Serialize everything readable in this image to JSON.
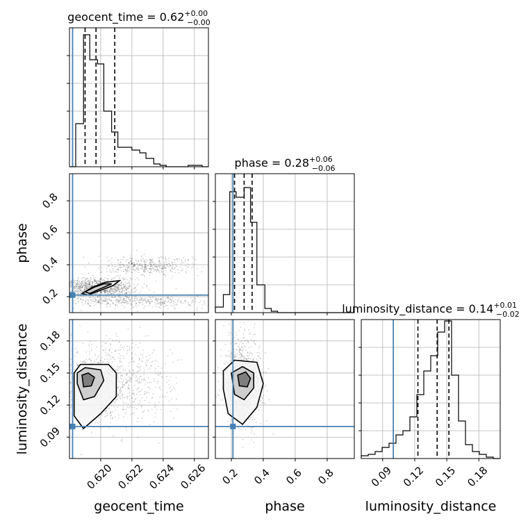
{
  "chart_data": {
    "type": "corner",
    "parameters": [
      "geocent_time",
      "phase",
      "luminosity_distance"
    ],
    "truths": {
      "geocent_time": 0.6182,
      "phase": 0.21,
      "luminosity_distance": 0.1
    },
    "truth_color": "#4682b4",
    "grid": true,
    "titles": [
      {
        "param": "geocent_time",
        "text": "geocent_time = 0.62",
        "sup": "+0.00",
        "sub": "−0.00"
      },
      {
        "param": "phase",
        "text": "phase = 0.28",
        "sup": "+0.06",
        "sub": "−0.06"
      },
      {
        "param": "luminosity_distance",
        "text": "luminosity_distance = 0.14",
        "sup": "+0.01",
        "sub": "−0.02"
      }
    ],
    "axis_labels": {
      "x": [
        "geocent_time",
        "phase",
        "luminosity_distance"
      ],
      "y": [
        "phase",
        "luminosity_distance"
      ]
    },
    "ranges": {
      "geocent_time": [
        0.618,
        0.6269
      ],
      "phase": [
        0.1,
        0.97
      ],
      "luminosity_distance": [
        0.07,
        0.2
      ]
    },
    "ticks": {
      "geocent_time": [
        0.62,
        0.622,
        0.624,
        0.626
      ],
      "phase": [
        0.2,
        0.4,
        0.6,
        0.8
      ],
      "luminosity_distance": [
        0.09,
        0.12,
        0.15,
        0.18
      ]
    },
    "tick_labels": {
      "geocent_time": [
        "0.620",
        "0.622",
        "0.624",
        "0.626"
      ],
      "phase": [
        "0.2",
        "0.4",
        "0.6",
        "0.8"
      ],
      "luminosity_distance": [
        "0.09",
        "0.12",
        "0.15",
        "0.18"
      ]
    },
    "quantiles": {
      "geocent_time": [
        0.619,
        0.6197,
        0.6209
      ],
      "phase": [
        0.22,
        0.28,
        0.33
      ],
      "luminosity_distance": [
        0.123,
        0.141,
        0.152
      ]
    },
    "histograms": {
      "geocent_time": {
        "bins": [
          0.618,
          0.6184,
          0.6189,
          0.6193,
          0.6198,
          0.6202,
          0.6207,
          0.6211,
          0.6216,
          0.622,
          0.6225,
          0.6229,
          0.6234,
          0.6238,
          0.6242,
          0.6247,
          0.6251,
          0.6256,
          0.626,
          0.6265,
          0.6269
        ],
        "counts": [
          0.0,
          0.31,
          0.95,
          0.77,
          0.74,
          0.4,
          0.25,
          0.14,
          0.14,
          0.12,
          0.1,
          0.06,
          0.02,
          0.01,
          0.0,
          0.0,
          0.0,
          0.01,
          0.01,
          0.0
        ]
      },
      "phase": {
        "bins": [
          0.1,
          0.15,
          0.19,
          0.23,
          0.28,
          0.32,
          0.36,
          0.41,
          0.45,
          0.49,
          0.54,
          0.58,
          0.62,
          0.67,
          0.71,
          0.75,
          0.8,
          0.84,
          0.88,
          0.93,
          0.97
        ],
        "counts": [
          0.04,
          0.13,
          0.87,
          0.83,
          0.9,
          0.65,
          0.2,
          0.03,
          0.01,
          0.0,
          0.0,
          0.0,
          0.0,
          0.0,
          0.0,
          0.0,
          0.0,
          0.0,
          0.0,
          0.0
        ]
      },
      "luminosity_distance": {
        "bins": [
          0.07,
          0.0765,
          0.083,
          0.0895,
          0.096,
          0.1025,
          0.109,
          0.1155,
          0.122,
          0.1285,
          0.135,
          0.1415,
          0.148,
          0.1545,
          0.161,
          0.1675,
          0.174,
          0.1805,
          0.187,
          0.1935,
          0.2
        ],
        "counts": [
          0.02,
          0.03,
          0.05,
          0.08,
          0.11,
          0.17,
          0.2,
          0.3,
          0.46,
          0.63,
          0.74,
          0.91,
          0.99,
          0.6,
          0.27,
          0.1,
          0.05,
          0.03,
          0.01,
          0.0
        ]
      }
    },
    "density_clouds": [
      {
        "panel": "phase_vs_geocent_time",
        "center": [
          0.6198,
          0.26
        ],
        "spread": [
          0.0012,
          0.03
        ]
      },
      {
        "panel": "phase_vs_geocent_time",
        "center": [
          0.623,
          0.39
        ],
        "spread": [
          0.0015,
          0.03
        ]
      },
      {
        "panel": "phase_vs_geocent_time",
        "center": [
          0.622,
          0.17
        ],
        "spread": [
          0.0025,
          0.02
        ]
      },
      {
        "panel": "luminosity_distance_vs_geocent_time",
        "center": [
          0.6205,
          0.14
        ],
        "spread": [
          0.002,
          0.02
        ]
      },
      {
        "panel": "luminosity_distance_vs_phase",
        "center": [
          0.27,
          0.142
        ],
        "spread": [
          0.06,
          0.02
        ]
      }
    ],
    "contours": [
      {
        "panel": "phase_vs_geocent_time",
        "paths": [
          [
            [
              0.6188,
              0.22
            ],
            [
              0.6195,
              0.26
            ],
            [
              0.6203,
              0.29
            ],
            [
              0.6212,
              0.3
            ],
            [
              0.6208,
              0.27
            ],
            [
              0.62,
              0.24
            ],
            [
              0.6192,
              0.21
            ],
            [
              0.6188,
              0.22
            ]
          ],
          [
            [
              0.619,
              0.23
            ],
            [
              0.6196,
              0.26
            ],
            [
              0.6202,
              0.28
            ],
            [
              0.6207,
              0.28
            ],
            [
              0.62,
              0.25
            ],
            [
              0.6193,
              0.22
            ],
            [
              0.619,
              0.23
            ]
          ]
        ]
      },
      {
        "panel": "luminosity_distance_vs_geocent_time",
        "paths": [
          [
            [
              0.6183,
              0.15
            ],
            [
              0.6187,
              0.158
            ],
            [
              0.6205,
              0.158
            ],
            [
              0.621,
              0.15
            ],
            [
              0.621,
              0.128
            ],
            [
              0.62,
              0.112
            ],
            [
              0.6189,
              0.098
            ],
            [
              0.6183,
              0.11
            ],
            [
              0.6183,
              0.15
            ]
          ],
          [
            [
              0.6185,
              0.15
            ],
            [
              0.619,
              0.155
            ],
            [
              0.62,
              0.153
            ],
            [
              0.6202,
              0.143
            ],
            [
              0.6196,
              0.128
            ],
            [
              0.6189,
              0.125
            ],
            [
              0.6185,
              0.14
            ],
            [
              0.6185,
              0.15
            ]
          ],
          [
            [
              0.6188,
              0.148
            ],
            [
              0.6192,
              0.15
            ],
            [
              0.6196,
              0.146
            ],
            [
              0.6194,
              0.138
            ],
            [
              0.6189,
              0.137
            ],
            [
              0.6188,
              0.148
            ]
          ]
        ]
      },
      {
        "panel": "luminosity_distance_vs_phase",
        "paths": [
          [
            [
              0.15,
              0.152
            ],
            [
              0.22,
              0.162
            ],
            [
              0.36,
              0.16
            ],
            [
              0.4,
              0.14
            ],
            [
              0.36,
              0.118
            ],
            [
              0.27,
              0.102
            ],
            [
              0.18,
              0.112
            ],
            [
              0.15,
              0.135
            ],
            [
              0.15,
              0.152
            ]
          ],
          [
            [
              0.2,
              0.15
            ],
            [
              0.27,
              0.156
            ],
            [
              0.34,
              0.15
            ],
            [
              0.34,
              0.136
            ],
            [
              0.28,
              0.125
            ],
            [
              0.22,
              0.13
            ],
            [
              0.2,
              0.15
            ]
          ],
          [
            [
              0.24,
              0.148
            ],
            [
              0.29,
              0.151
            ],
            [
              0.32,
              0.145
            ],
            [
              0.3,
              0.137
            ],
            [
              0.25,
              0.138
            ],
            [
              0.24,
              0.148
            ]
          ]
        ]
      }
    ]
  }
}
